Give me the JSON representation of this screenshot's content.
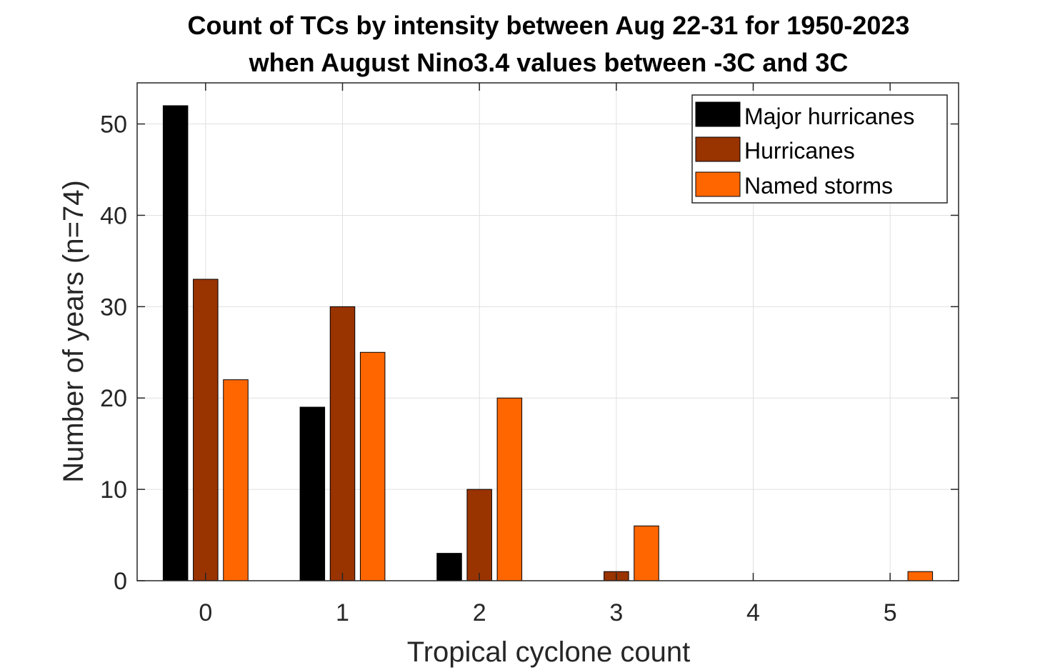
{
  "chart_data": {
    "type": "bar",
    "title": [
      "Count of TCs by intensity between Aug 22-31 for 1950-2023",
      "when August Nino3.4 values between -3C and 3C"
    ],
    "xlabel": "Tropical cyclone count",
    "ylabel": "Number of years (n=74)",
    "categories": [
      "0",
      "1",
      "2",
      "3",
      "4",
      "5"
    ],
    "xlim": [
      -0.5,
      5.5
    ],
    "ylim": [
      0,
      54.5
    ],
    "yticks": [
      0,
      10,
      20,
      30,
      40,
      50
    ],
    "grid": true,
    "legend_position": "top-right",
    "series": [
      {
        "name": "Major hurricanes",
        "color": "#000000",
        "values": [
          52,
          19,
          3,
          0,
          0,
          0
        ]
      },
      {
        "name": "Hurricanes",
        "color": "#993300",
        "values": [
          33,
          30,
          10,
          1,
          0,
          0
        ]
      },
      {
        "name": "Named storms",
        "color": "#ff6600",
        "values": [
          22,
          25,
          20,
          6,
          0,
          1
        ]
      }
    ]
  }
}
